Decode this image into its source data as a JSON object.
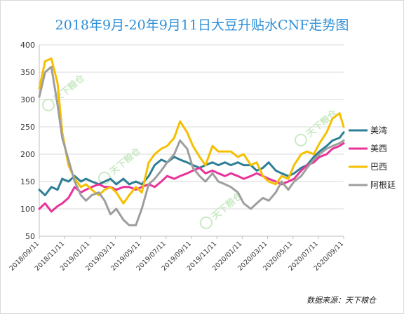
{
  "chart_data": {
    "type": "line",
    "title": "2018年9月-20年9月11日大豆升贴水CNF走势图",
    "source": "数据来源：天下粮仓",
    "watermark": "天下粮仓",
    "ylim": [
      50,
      400
    ],
    "yticks": [
      "50",
      "100",
      "150",
      "200",
      "250",
      "300",
      "350",
      "400"
    ],
    "xrange": [
      "2018-09-11",
      "2020-09-11"
    ],
    "xticks": [
      "2018/09/11",
      "2018/11/11",
      "2019/01/11",
      "2019/03/11",
      "2019/05/11",
      "2019/07/11",
      "2019/09/11",
      "2019/11/11",
      "2020/01/11",
      "2020/03/11",
      "2020/05/11",
      "2020/07/11",
      "2020/09/11"
    ],
    "grid": true,
    "legend_position": "right",
    "series": [
      {
        "name": "美湾",
        "color": "#2e7f95",
        "points": [
          [
            "2018-09-11",
            135
          ],
          [
            "2018-09-25",
            125
          ],
          [
            "2018-10-10",
            140
          ],
          [
            "2018-10-25",
            135
          ],
          [
            "2018-11-05",
            155
          ],
          [
            "2018-11-20",
            150
          ],
          [
            "2018-12-05",
            160
          ],
          [
            "2018-12-20",
            150
          ],
          [
            "2019-01-01",
            155
          ],
          [
            "2019-01-15",
            150
          ],
          [
            "2019-02-01",
            145
          ],
          [
            "2019-02-15",
            150
          ],
          [
            "2019-03-01",
            155
          ],
          [
            "2019-03-15",
            145
          ],
          [
            "2019-04-01",
            155
          ],
          [
            "2019-04-15",
            145
          ],
          [
            "2019-05-01",
            150
          ],
          [
            "2019-05-15",
            145
          ],
          [
            "2019-06-01",
            160
          ],
          [
            "2019-06-15",
            180
          ],
          [
            "2019-07-01",
            190
          ],
          [
            "2019-07-15",
            185
          ],
          [
            "2019-08-01",
            195
          ],
          [
            "2019-08-15",
            190
          ],
          [
            "2019-09-01",
            185
          ],
          [
            "2019-09-15",
            180
          ],
          [
            "2019-10-01",
            175
          ],
          [
            "2019-10-15",
            180
          ],
          [
            "2019-11-01",
            185
          ],
          [
            "2019-11-15",
            180
          ],
          [
            "2019-12-01",
            185
          ],
          [
            "2019-12-15",
            180
          ],
          [
            "2020-01-01",
            185
          ],
          [
            "2020-01-15",
            180
          ],
          [
            "2020-02-01",
            180
          ],
          [
            "2020-02-15",
            170
          ],
          [
            "2020-03-01",
            175
          ],
          [
            "2020-03-15",
            185
          ],
          [
            "2020-04-01",
            170
          ],
          [
            "2020-04-15",
            165
          ],
          [
            "2020-05-01",
            160
          ],
          [
            "2020-05-15",
            165
          ],
          [
            "2020-06-01",
            175
          ],
          [
            "2020-06-15",
            180
          ],
          [
            "2020-07-01",
            195
          ],
          [
            "2020-07-15",
            205
          ],
          [
            "2020-08-01",
            215
          ],
          [
            "2020-08-15",
            225
          ],
          [
            "2020-09-01",
            230
          ],
          [
            "2020-09-11",
            240
          ]
        ]
      },
      {
        "name": "美西",
        "color": "#e8339a",
        "points": [
          [
            "2018-09-11",
            100
          ],
          [
            "2018-09-25",
            110
          ],
          [
            "2018-10-10",
            95
          ],
          [
            "2018-10-25",
            105
          ],
          [
            "2018-11-05",
            110
          ],
          [
            "2018-11-20",
            120
          ],
          [
            "2018-12-05",
            140
          ],
          [
            "2018-12-20",
            130
          ],
          [
            "2019-01-01",
            135
          ],
          [
            "2019-01-15",
            140
          ],
          [
            "2019-02-01",
            145
          ],
          [
            "2019-02-15",
            140
          ],
          [
            "2019-03-01",
            140
          ],
          [
            "2019-03-15",
            135
          ],
          [
            "2019-04-01",
            140
          ],
          [
            "2019-04-15",
            140
          ],
          [
            "2019-05-01",
            135
          ],
          [
            "2019-05-15",
            140
          ],
          [
            "2019-06-01",
            145
          ],
          [
            "2019-06-15",
            140
          ],
          [
            "2019-07-01",
            150
          ],
          [
            "2019-07-15",
            160
          ],
          [
            "2019-08-01",
            155
          ],
          [
            "2019-08-15",
            160
          ],
          [
            "2019-09-01",
            165
          ],
          [
            "2019-09-15",
            170
          ],
          [
            "2019-10-01",
            175
          ],
          [
            "2019-10-15",
            165
          ],
          [
            "2019-11-01",
            170
          ],
          [
            "2019-11-15",
            165
          ],
          [
            "2019-12-01",
            160
          ],
          [
            "2019-12-15",
            165
          ],
          [
            "2020-01-01",
            160
          ],
          [
            "2020-01-15",
            155
          ],
          [
            "2020-02-01",
            160
          ],
          [
            "2020-02-15",
            165
          ],
          [
            "2020-03-01",
            160
          ],
          [
            "2020-03-15",
            155
          ],
          [
            "2020-04-01",
            150
          ],
          [
            "2020-04-15",
            145
          ],
          [
            "2020-05-01",
            150
          ],
          [
            "2020-05-15",
            155
          ],
          [
            "2020-06-01",
            170
          ],
          [
            "2020-06-15",
            180
          ],
          [
            "2020-07-01",
            185
          ],
          [
            "2020-07-15",
            195
          ],
          [
            "2020-08-01",
            200
          ],
          [
            "2020-08-15",
            210
          ],
          [
            "2020-09-01",
            215
          ],
          [
            "2020-09-11",
            220
          ]
        ]
      },
      {
        "name": "巴西",
        "color": "#f5c000",
        "points": [
          [
            "2018-09-11",
            320
          ],
          [
            "2018-09-25",
            370
          ],
          [
            "2018-10-10",
            375
          ],
          [
            "2018-10-25",
            330
          ],
          [
            "2018-11-05",
            240
          ],
          [
            "2018-11-20",
            180
          ],
          [
            "2018-12-05",
            155
          ],
          [
            "2018-12-20",
            140
          ],
          [
            "2019-01-01",
            145
          ],
          [
            "2019-01-15",
            135
          ],
          [
            "2019-02-01",
            125
          ],
          [
            "2019-02-15",
            135
          ],
          [
            "2019-03-01",
            140
          ],
          [
            "2019-03-15",
            130
          ],
          [
            "2019-04-01",
            110
          ],
          [
            "2019-04-15",
            125
          ],
          [
            "2019-05-01",
            140
          ],
          [
            "2019-05-15",
            130
          ],
          [
            "2019-06-01",
            185
          ],
          [
            "2019-06-15",
            200
          ],
          [
            "2019-07-01",
            210
          ],
          [
            "2019-07-15",
            215
          ],
          [
            "2019-08-01",
            230
          ],
          [
            "2019-08-15",
            260
          ],
          [
            "2019-09-01",
            240
          ],
          [
            "2019-09-15",
            215
          ],
          [
            "2019-10-01",
            195
          ],
          [
            "2019-10-15",
            180
          ],
          [
            "2019-11-01",
            215
          ],
          [
            "2019-11-15",
            205
          ],
          [
            "2019-12-01",
            205
          ],
          [
            "2019-12-15",
            205
          ],
          [
            "2020-01-01",
            195
          ],
          [
            "2020-01-15",
            200
          ],
          [
            "2020-02-01",
            180
          ],
          [
            "2020-02-15",
            185
          ],
          [
            "2020-03-01",
            160
          ],
          [
            "2020-03-15",
            150
          ],
          [
            "2020-04-01",
            145
          ],
          [
            "2020-04-15",
            160
          ],
          [
            "2020-05-01",
            155
          ],
          [
            "2020-05-15",
            180
          ],
          [
            "2020-06-01",
            200
          ],
          [
            "2020-06-15",
            205
          ],
          [
            "2020-07-01",
            200
          ],
          [
            "2020-07-15",
            220
          ],
          [
            "2020-08-01",
            240
          ],
          [
            "2020-08-15",
            265
          ],
          [
            "2020-09-01",
            275
          ],
          [
            "2020-09-11",
            250
          ]
        ]
      },
      {
        "name": "阿根廷",
        "color": "#9e9e9e",
        "points": [
          [
            "2018-09-11",
            305
          ],
          [
            "2018-09-25",
            350
          ],
          [
            "2018-10-10",
            360
          ],
          [
            "2018-10-25",
            290
          ],
          [
            "2018-11-05",
            230
          ],
          [
            "2018-11-20",
            190
          ],
          [
            "2018-12-05",
            150
          ],
          [
            "2018-12-20",
            125
          ],
          [
            "2019-01-01",
            115
          ],
          [
            "2019-01-15",
            125
          ],
          [
            "2019-02-01",
            130
          ],
          [
            "2019-02-15",
            115
          ],
          [
            "2019-03-01",
            90
          ],
          [
            "2019-03-15",
            100
          ],
          [
            "2019-04-01",
            80
          ],
          [
            "2019-04-15",
            70
          ],
          [
            "2019-05-01",
            70
          ],
          [
            "2019-05-15",
            100
          ],
          [
            "2019-06-01",
            145
          ],
          [
            "2019-06-15",
            155
          ],
          [
            "2019-07-01",
            170
          ],
          [
            "2019-07-15",
            185
          ],
          [
            "2019-08-01",
            200
          ],
          [
            "2019-08-15",
            225
          ],
          [
            "2019-09-01",
            210
          ],
          [
            "2019-09-15",
            175
          ],
          [
            "2019-10-01",
            160
          ],
          [
            "2019-10-15",
            150
          ],
          [
            "2019-11-01",
            165
          ],
          [
            "2019-11-15",
            150
          ],
          [
            "2019-12-01",
            145
          ],
          [
            "2019-12-15",
            140
          ],
          [
            "2020-01-01",
            130
          ],
          [
            "2020-01-15",
            110
          ],
          [
            "2020-02-01",
            100
          ],
          [
            "2020-02-15",
            110
          ],
          [
            "2020-03-01",
            120
          ],
          [
            "2020-03-15",
            115
          ],
          [
            "2020-04-01",
            130
          ],
          [
            "2020-04-15",
            150
          ],
          [
            "2020-05-01",
            135
          ],
          [
            "2020-05-15",
            150
          ],
          [
            "2020-06-01",
            160
          ],
          [
            "2020-06-15",
            175
          ],
          [
            "2020-07-01",
            190
          ],
          [
            "2020-07-15",
            200
          ],
          [
            "2020-08-01",
            210
          ],
          [
            "2020-08-15",
            215
          ],
          [
            "2020-09-01",
            220
          ],
          [
            "2020-09-11",
            225
          ]
        ]
      }
    ]
  }
}
